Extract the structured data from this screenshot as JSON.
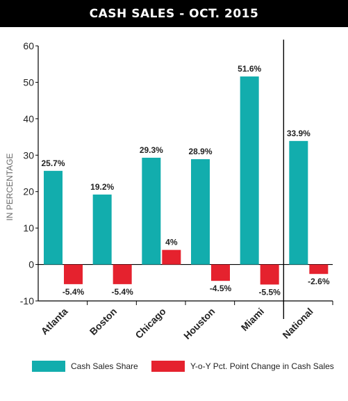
{
  "title": "CASH SALES - OCT. 2015",
  "colors": {
    "share": "#12adad",
    "change": "#e5222e"
  },
  "chart_data": {
    "type": "bar",
    "categories": [
      "Atlanta",
      "Boston",
      "Chicago",
      "Houston",
      "Miami",
      "National"
    ],
    "series": [
      {
        "name": "Cash Sales Share",
        "values": [
          25.7,
          19.2,
          29.3,
          28.9,
          51.6,
          33.9
        ],
        "labels": [
          "25.7%",
          "19.2%",
          "29.3%",
          "28.9%",
          "51.6%",
          "33.9%"
        ]
      },
      {
        "name": "Y-o-Y Pct. Point Change in Cash Sales",
        "values": [
          -5.4,
          -5.4,
          4,
          -4.5,
          -5.5,
          -2.6
        ],
        "labels": [
          "-5.4%",
          "-5.4%",
          "4%",
          "-4.5%",
          "-5.5%",
          "-2.6%"
        ]
      }
    ],
    "ylabel": "IN PERCENTAGE",
    "ylim": [
      -10,
      60
    ],
    "yticks": [
      -10,
      0,
      10,
      20,
      30,
      40,
      50,
      60
    ],
    "grid": false,
    "legend": "bottom"
  }
}
